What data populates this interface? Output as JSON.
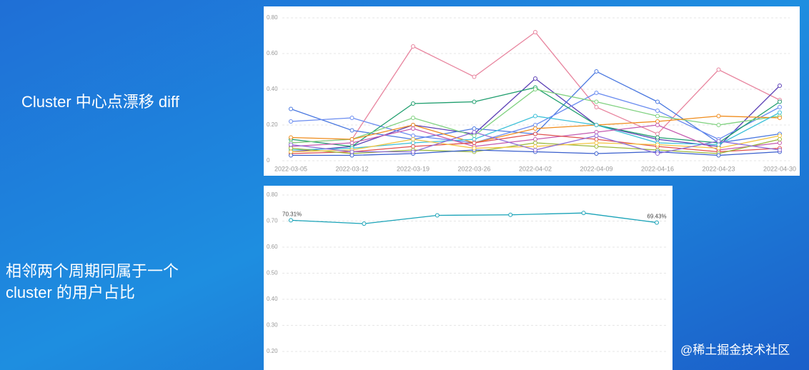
{
  "slide": {
    "labels": [
      "Cluster 中心点漂移 diff",
      "相邻两个周期同属于一个",
      "cluster 的用户占比"
    ],
    "watermark": "@稀土掘金技术社区"
  },
  "chart_data": [
    {
      "type": "line",
      "categories": [
        "2022-03-05",
        "2022-03-12",
        "2022-03-19",
        "2022-03-26",
        "2022-04-02",
        "2022-04-09",
        "2022-04-16",
        "2022-04-23",
        "2022-04-30"
      ],
      "ylim": [
        0,
        0.8
      ],
      "yticks": [
        0,
        {
          "value": 0.2,
          "label": "0.20"
        },
        {
          "value": 0.4,
          "label": "0.40"
        },
        {
          "value": 0.6,
          "label": "0.60"
        },
        {
          "value": 0.8,
          "label": "0.80"
        }
      ],
      "grid": true,
      "series": [
        {
          "color": "#e8849e",
          "values": [
            0.1,
            0.12,
            0.64,
            0.47,
            0.72,
            0.3,
            0.15,
            0.51,
            0.34
          ]
        },
        {
          "color": "#5b3fb5",
          "values": [
            0.05,
            0.08,
            0.2,
            0.15,
            0.46,
            0.2,
            0.12,
            0.08,
            0.42
          ]
        },
        {
          "color": "#4a78e0",
          "values": [
            0.29,
            0.17,
            0.12,
            0.18,
            0.15,
            0.5,
            0.33,
            0.1,
            0.15
          ]
        },
        {
          "color": "#6a8cf0",
          "values": [
            0.22,
            0.24,
            0.14,
            0.1,
            0.2,
            0.38,
            0.28,
            0.12,
            0.3
          ]
        },
        {
          "color": "#1f9e6e",
          "values": [
            0.12,
            0.08,
            0.32,
            0.33,
            0.41,
            0.2,
            0.13,
            0.1,
            0.33
          ]
        },
        {
          "color": "#7fd17f",
          "values": [
            0.1,
            0.12,
            0.24,
            0.14,
            0.4,
            0.33,
            0.25,
            0.2,
            0.25
          ]
        },
        {
          "color": "#f08c1c",
          "values": [
            0.13,
            0.12,
            0.2,
            0.1,
            0.18,
            0.2,
            0.22,
            0.25,
            0.24
          ]
        },
        {
          "color": "#3cc0d8",
          "values": [
            0.06,
            0.07,
            0.1,
            0.12,
            0.25,
            0.2,
            0.1,
            0.09,
            0.27
          ]
        },
        {
          "color": "#c45ab0",
          "values": [
            0.08,
            0.1,
            0.18,
            0.08,
            0.12,
            0.16,
            0.2,
            0.06,
            0.1
          ]
        },
        {
          "color": "#e05050",
          "values": [
            0.04,
            0.05,
            0.08,
            0.1,
            0.15,
            0.12,
            0.08,
            0.05,
            0.07
          ]
        },
        {
          "color": "#9bb83c",
          "values": [
            0.07,
            0.04,
            0.06,
            0.05,
            0.1,
            0.08,
            0.06,
            0.04,
            0.12
          ]
        },
        {
          "color": "#3a5fcd",
          "values": [
            0.03,
            0.03,
            0.04,
            0.06,
            0.05,
            0.04,
            0.05,
            0.03,
            0.05
          ]
        },
        {
          "color": "#f4c542",
          "values": [
            0.05,
            0.06,
            0.12,
            0.07,
            0.08,
            0.1,
            0.09,
            0.07,
            0.14
          ]
        },
        {
          "color": "#8e6cd8",
          "values": [
            0.09,
            0.05,
            0.05,
            0.16,
            0.06,
            0.14,
            0.04,
            0.11,
            0.06
          ]
        }
      ]
    },
    {
      "type": "line",
      "categories": [
        null,
        null,
        null,
        null,
        null,
        null
      ],
      "ylim": [
        0.2,
        0.8
      ],
      "yticks": [
        {
          "value": 0.2,
          "label": "0.20"
        },
        {
          "value": 0.3,
          "label": "0.30"
        },
        {
          "value": 0.4,
          "label": "0.40"
        },
        {
          "value": 0.5,
          "label": "0.50"
        },
        {
          "value": 0.6,
          "label": "0.60"
        },
        {
          "value": 0.7,
          "label": "0.70"
        },
        {
          "value": 0.8,
          "label": "0.80"
        }
      ],
      "grid": true,
      "series": [
        {
          "color": "#1aa3b8",
          "values": [
            0.7031,
            0.69,
            0.722,
            0.724,
            0.731,
            0.6943
          ],
          "value_labels": [
            "70.31%",
            null,
            null,
            null,
            null,
            "69.43%"
          ]
        }
      ]
    }
  ]
}
